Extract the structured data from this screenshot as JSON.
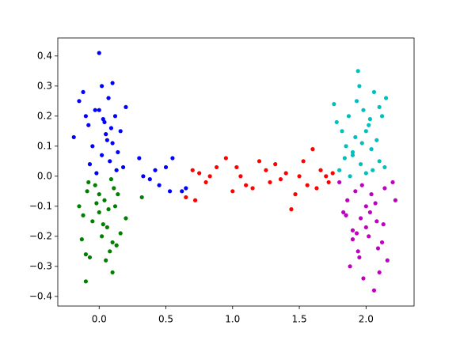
{
  "chart_data": {
    "type": "scatter",
    "xlim": [
      -0.31,
      2.36
    ],
    "ylim": [
      -0.432,
      0.46
    ],
    "xticks": [
      {
        "value": 0,
        "label": "0.0"
      },
      0.5,
      {
        "value": 1,
        "label": "1.0"
      },
      1.5,
      {
        "value": 2,
        "label": "2.0"
      }
    ],
    "yticks": [
      {
        "value": -0.4,
        "label": "−0.4"
      },
      {
        "value": -0.3,
        "label": "−0.3"
      },
      {
        "value": -0.2,
        "label": "−0.2"
      },
      {
        "value": -0.1,
        "label": "−0.1"
      },
      {
        "value": 0,
        "label": "0.0"
      },
      0.1,
      0.2,
      0.3,
      0.4
    ],
    "series": [
      {
        "color": "#0000ff",
        "x": [
          -0.19,
          -0.15,
          -0.12,
          -0.1,
          -0.08,
          -0.05,
          -0.03,
          0.0,
          0.02,
          0.04,
          0.06,
          0.08,
          0.1,
          0.12,
          0.14,
          0.16,
          0.18,
          0.02,
          -0.07,
          0.05,
          0.1,
          0.0,
          -0.02,
          0.13,
          0.07,
          0.3,
          0.33,
          0.38,
          0.42,
          0.45,
          0.5,
          0.53,
          0.55,
          0.62,
          0.65,
          0.2,
          0.09,
          0.03
        ],
        "values": [
          0.13,
          0.25,
          0.28,
          0.2,
          0.17,
          0.1,
          0.22,
          0.41,
          0.3,
          0.18,
          0.12,
          0.05,
          0.31,
          0.2,
          0.08,
          0.15,
          0.03,
          0.07,
          0.04,
          0.14,
          0.11,
          0.22,
          0.01,
          0.02,
          0.26,
          0.06,
          0.0,
          -0.01,
          0.02,
          -0.03,
          0.03,
          -0.05,
          0.06,
          -0.05,
          -0.04,
          0.23,
          0.16,
          0.19
        ]
      },
      {
        "color": "#008000",
        "x": [
          -0.15,
          -0.13,
          -0.1,
          -0.09,
          -0.07,
          -0.05,
          -0.03,
          0.0,
          0.02,
          0.04,
          0.06,
          0.08,
          0.1,
          0.12,
          0.14,
          0.16,
          0.2,
          -0.12,
          -0.08,
          0.0,
          0.05,
          0.1,
          -0.02,
          0.07,
          0.11,
          0.32,
          -0.1,
          0.03,
          0.13,
          0.09
        ],
        "values": [
          -0.1,
          -0.21,
          -0.35,
          -0.05,
          -0.27,
          -0.15,
          -0.03,
          -0.12,
          -0.2,
          -0.08,
          -0.17,
          -0.25,
          -0.32,
          -0.1,
          -0.06,
          -0.19,
          -0.14,
          -0.13,
          -0.02,
          -0.06,
          -0.28,
          -0.22,
          -0.09,
          -0.11,
          -0.04,
          -0.07,
          -0.26,
          -0.16,
          -0.23,
          -0.01
        ]
      },
      {
        "color": "#ff0000",
        "x": [
          0.65,
          0.7,
          0.72,
          0.75,
          0.8,
          0.83,
          0.88,
          0.95,
          1.0,
          1.03,
          1.06,
          1.1,
          1.15,
          1.2,
          1.25,
          1.28,
          1.32,
          1.36,
          1.4,
          1.44,
          1.47,
          1.5,
          1.53,
          1.56,
          1.6,
          1.63,
          1.66,
          1.7,
          1.72,
          1.75
        ],
        "values": [
          -0.07,
          0.02,
          -0.08,
          0.01,
          -0.02,
          0.0,
          0.03,
          0.06,
          -0.05,
          0.03,
          0.0,
          -0.03,
          -0.04,
          0.05,
          0.02,
          -0.02,
          0.04,
          -0.01,
          0.01,
          -0.11,
          -0.06,
          0.0,
          0.05,
          -0.03,
          0.09,
          -0.04,
          0.02,
          0.0,
          -0.02,
          0.01
        ]
      },
      {
        "color": "#00bfbf",
        "x": [
          1.76,
          1.78,
          1.8,
          1.82,
          1.85,
          1.87,
          1.9,
          1.92,
          1.94,
          1.96,
          1.98,
          2.0,
          2.02,
          2.04,
          2.06,
          2.08,
          2.1,
          2.12,
          2.14,
          1.95,
          1.88,
          2.0,
          2.05,
          1.93,
          1.84,
          2.1,
          1.97,
          2.03,
          1.9,
          2.15
        ],
        "values": [
          0.24,
          0.18,
          0.02,
          0.15,
          0.1,
          0.2,
          0.07,
          0.13,
          0.35,
          0.04,
          0.22,
          0.01,
          0.17,
          0.09,
          0.28,
          0.12,
          0.05,
          0.2,
          0.03,
          0.3,
          0.0,
          0.15,
          0.02,
          0.25,
          0.06,
          0.23,
          0.11,
          0.19,
          0.08,
          0.26
        ]
      },
      {
        "color": "#bf00bf",
        "x": [
          1.8,
          1.83,
          1.86,
          1.88,
          1.9,
          1.92,
          1.94,
          1.96,
          1.98,
          2.0,
          2.02,
          2.04,
          2.06,
          2.08,
          2.1,
          2.12,
          2.14,
          2.16,
          2.2,
          1.85,
          1.95,
          2.0,
          2.07,
          2.13,
          1.9,
          2.03,
          1.97,
          2.09,
          2.22,
          1.93
        ],
        "values": [
          -0.02,
          -0.12,
          -0.08,
          -0.3,
          -0.18,
          -0.05,
          -0.25,
          -0.14,
          -0.34,
          -0.1,
          -0.2,
          -0.06,
          -0.38,
          -0.15,
          -0.32,
          -0.22,
          -0.04,
          -0.28,
          -0.02,
          -0.13,
          -0.27,
          -0.17,
          -0.09,
          -0.16,
          -0.21,
          -0.12,
          -0.03,
          -0.24,
          -0.08,
          -0.19
        ]
      }
    ]
  }
}
